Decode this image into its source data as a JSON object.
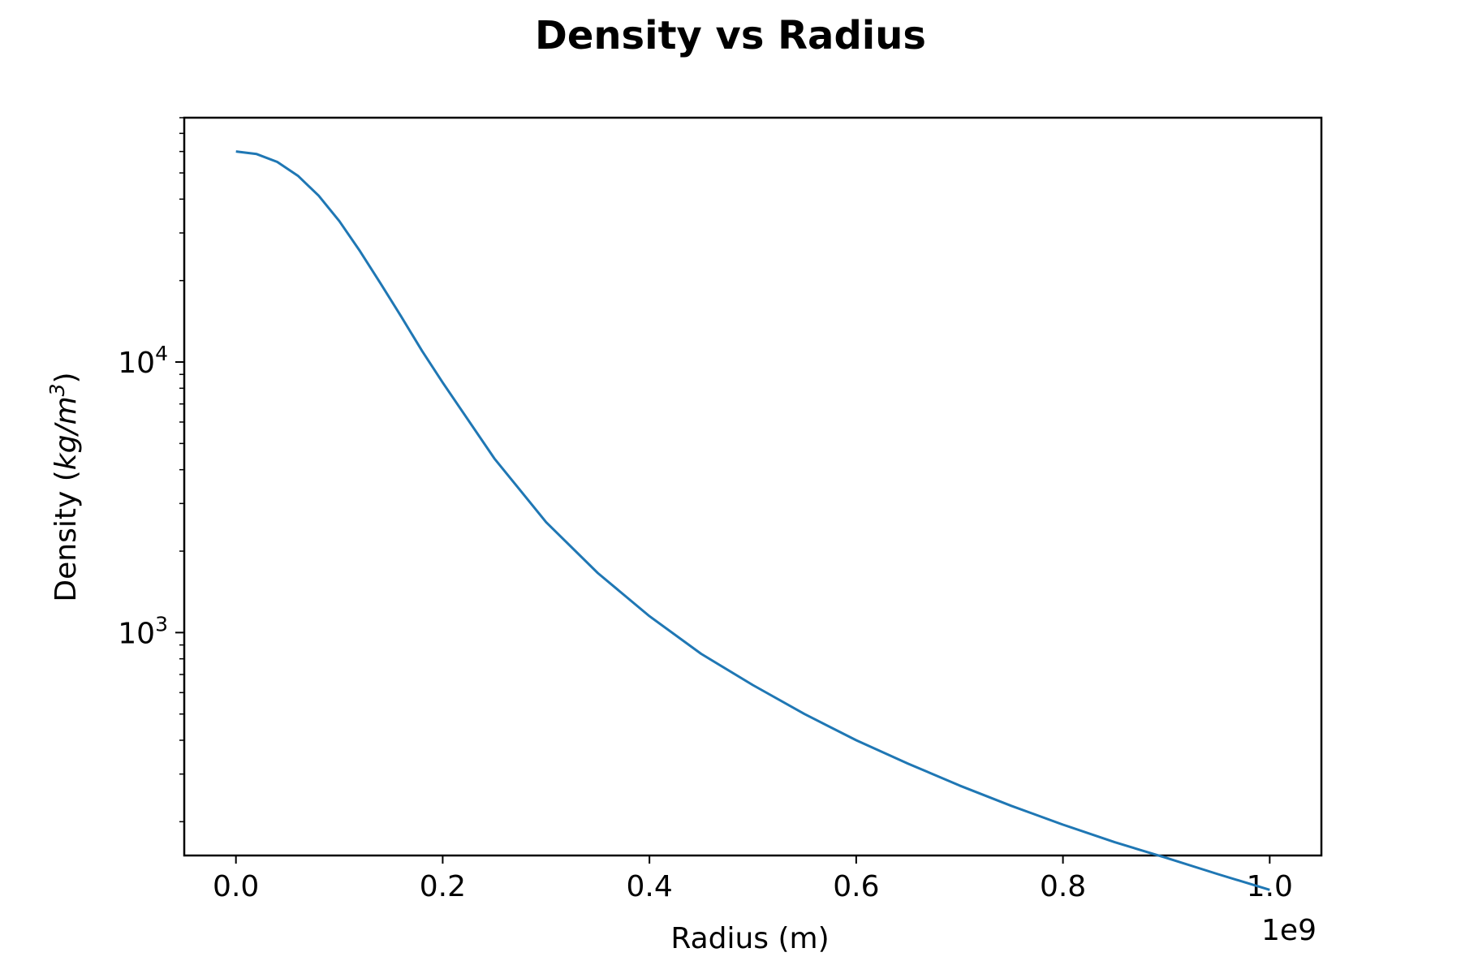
{
  "chart_data": {
    "type": "line",
    "title": "Density vs Radius",
    "xlabel": "Radius (m)",
    "ylabel_prefix": "Density (",
    "ylabel_unit_base": "kg/m",
    "ylabel_unit_exp": "3",
    "ylabel_suffix": ")",
    "x_offset_label": "1e9",
    "xscale": "linear",
    "yscale": "log",
    "xlim": [
      -0.05,
      1.05
    ],
    "ylim": [
      150,
      80000
    ],
    "x_ticks": [
      {
        "value": 0.0,
        "label": "0.0"
      },
      {
        "value": 0.2,
        "label": "0.2"
      },
      {
        "value": 0.4,
        "label": "0.4"
      },
      {
        "value": 0.6,
        "label": "0.6"
      },
      {
        "value": 0.8,
        "label": "0.8"
      },
      {
        "value": 1.0,
        "label": "1.0"
      }
    ],
    "y_ticks": [
      {
        "value": 1000,
        "base": "10",
        "exp": "3"
      },
      {
        "value": 10000,
        "base": "10",
        "exp": "4"
      }
    ],
    "grid": false,
    "line_color": "#1f77b4",
    "series": [
      {
        "x": [
          0.0,
          0.02,
          0.04,
          0.06,
          0.08,
          0.1,
          0.12,
          0.14,
          0.16,
          0.18,
          0.2,
          0.25,
          0.3,
          0.35,
          0.4,
          0.45,
          0.5,
          0.55,
          0.6,
          0.65,
          0.7,
          0.75,
          0.8,
          0.85,
          0.9,
          0.95,
          1.0
        ],
        "y": [
          60000,
          58700,
          54900,
          48800,
          41200,
          33200,
          25700,
          19500,
          14700,
          11000,
          8400,
          4400,
          2560,
          1660,
          1150,
          835,
          640,
          500,
          400,
          328,
          272,
          229,
          195,
          168,
          147,
          128,
          112
        ]
      }
    ]
  }
}
